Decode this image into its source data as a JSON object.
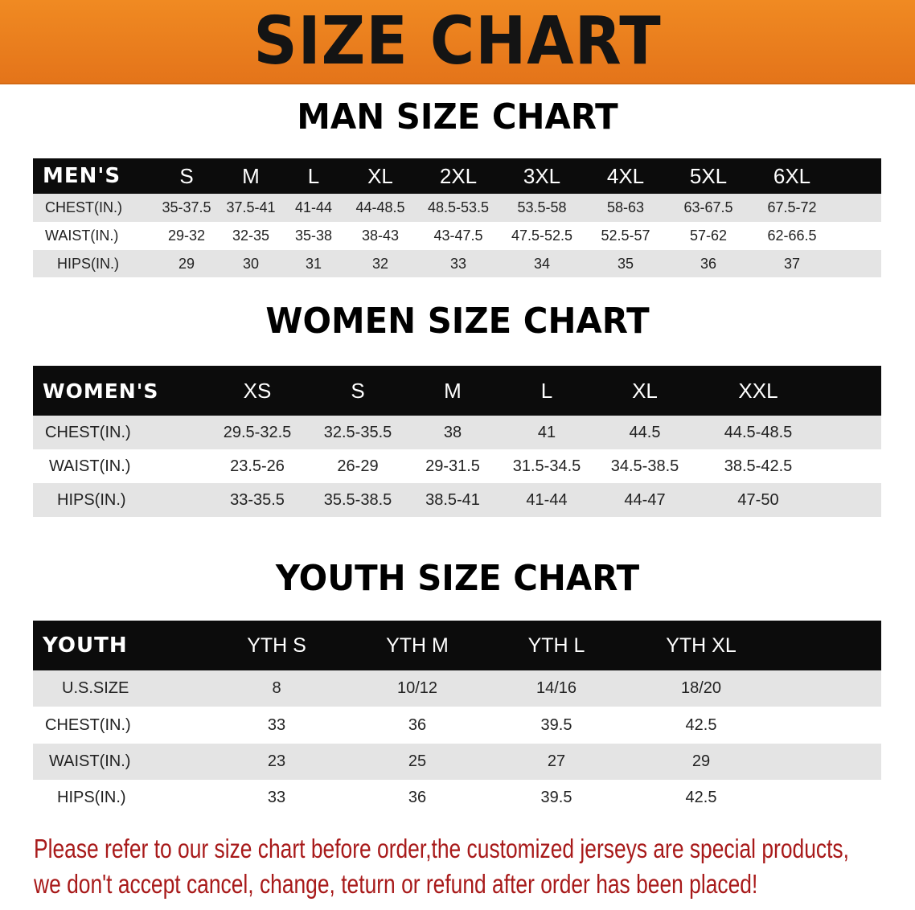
{
  "banner_title": "SIZE CHART",
  "colors": {
    "banner": "#e87a1c",
    "header_bg": "#0c0c0c",
    "row_alt": "#e4e4e4",
    "note": "#a81a1a"
  },
  "men": {
    "title": "MAN SIZE CHART",
    "header": [
      "MEN'S",
      "S",
      "M",
      "L",
      "XL",
      "2XL",
      "3XL",
      "4XL",
      "5XL",
      "6XL"
    ],
    "rows": [
      [
        "CHEST(IN.)",
        "35-37.5",
        "37.5-41",
        "41-44",
        "44-48.5",
        "48.5-53.5",
        "53.5-58",
        "58-63",
        "63-67.5",
        "67.5-72"
      ],
      [
        "WAIST(IN.)",
        "29-32",
        "32-35",
        "35-38",
        "38-43",
        "43-47.5",
        "47.5-52.5",
        "52.5-57",
        "57-62",
        "62-66.5"
      ],
      [
        "HIPS(IN.)",
        "29",
        "30",
        "31",
        "32",
        "33",
        "34",
        "35",
        "36",
        "37"
      ]
    ]
  },
  "women": {
    "title": "WOMEN SIZE CHART",
    "header": [
      "WOMEN'S",
      "XS",
      "S",
      "M",
      "L",
      "XL",
      "XXL"
    ],
    "rows": [
      [
        "CHEST(IN.)",
        "29.5-32.5",
        "32.5-35.5",
        "38",
        "41",
        "44.5",
        "44.5-48.5"
      ],
      [
        "WAIST(IN.)",
        "23.5-26",
        "26-29",
        "29-31.5",
        "31.5-34.5",
        "34.5-38.5",
        "38.5-42.5"
      ],
      [
        "HIPS(IN.)",
        "33-35.5",
        "35.5-38.5",
        "38.5-41",
        "41-44",
        "44-47",
        "47-50"
      ]
    ]
  },
  "youth": {
    "title": "YOUTH SIZE CHART",
    "header": [
      "YOUTH",
      "YTH S",
      "YTH M",
      "YTH L",
      "YTH XL"
    ],
    "rows": [
      [
        "U.S.SIZE",
        "8",
        "10/12",
        "14/16",
        "18/20"
      ],
      [
        "CHEST(IN.)",
        "33",
        "36",
        "39.5",
        "42.5"
      ],
      [
        "WAIST(IN.)",
        "23",
        "25",
        "27",
        "29"
      ],
      [
        "HIPS(IN.)",
        "33",
        "36",
        "39.5",
        "42.5"
      ]
    ]
  },
  "note_lines": [
    "Please refer to our size chart before order,the customized jerseys are special products,",
    "we don't accept cancel, change, teturn or refund after order has been placed!"
  ]
}
